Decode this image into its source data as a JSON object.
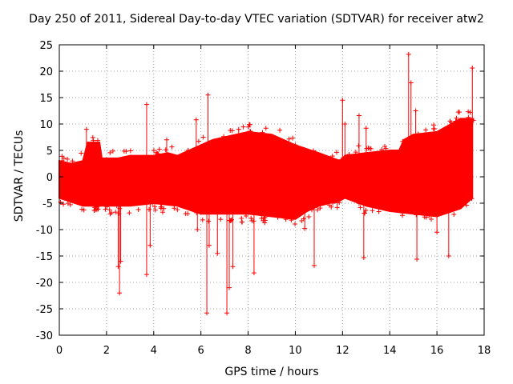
{
  "chart_data": {
    "type": "scatter",
    "title": "Day 250 of 2011, Sidereal Day-to-day VTEC variation (SDTVAR) for receiver atw2",
    "xlabel": "GPS time / hours",
    "ylabel": "SDTVAR / TECUs",
    "xlim": [
      0,
      18
    ],
    "ylim": [
      -30,
      25
    ],
    "xticks": [
      "0",
      "2",
      "4",
      "6",
      "8",
      "10",
      "12",
      "14",
      "16",
      "18"
    ],
    "yticks": [
      "25",
      "20",
      "15",
      "10",
      "5",
      "0",
      "-5",
      "-10",
      "-15",
      "-20",
      "-25",
      "-30"
    ],
    "grid": true,
    "color": "#ff0000",
    "marker": "plus",
    "band_upper": [
      [
        0.0,
        3
      ],
      [
        0.5,
        2.5
      ],
      [
        1.0,
        3
      ],
      [
        1.2,
        6.5
      ],
      [
        1.7,
        6.5
      ],
      [
        1.8,
        3.5
      ],
      [
        2.5,
        3.5
      ],
      [
        3.0,
        4
      ],
      [
        4.0,
        4
      ],
      [
        4.6,
        4.5
      ],
      [
        5.0,
        4
      ],
      [
        5.5,
        5
      ],
      [
        6.0,
        6
      ],
      [
        6.5,
        7
      ],
      [
        7.0,
        7.5
      ],
      [
        8.0,
        8.5
      ],
      [
        9.0,
        8
      ],
      [
        10.0,
        6
      ],
      [
        11.0,
        4.5
      ],
      [
        11.9,
        3
      ],
      [
        12.1,
        4
      ],
      [
        13.0,
        4.5
      ],
      [
        14.0,
        5
      ],
      [
        14.4,
        5
      ],
      [
        14.6,
        7
      ],
      [
        15.0,
        8
      ],
      [
        16.0,
        8.5
      ],
      [
        16.6,
        10
      ],
      [
        17.0,
        11
      ],
      [
        17.5,
        11
      ]
    ],
    "band_lower": [
      [
        0.0,
        -4
      ],
      [
        1.0,
        -5.5
      ],
      [
        2.0,
        -5.5
      ],
      [
        3.0,
        -5.5
      ],
      [
        4.0,
        -5
      ],
      [
        5.0,
        -5.5
      ],
      [
        6.0,
        -7
      ],
      [
        7.0,
        -7
      ],
      [
        8.0,
        -7
      ],
      [
        9.0,
        -7.5
      ],
      [
        10.0,
        -8
      ],
      [
        10.5,
        -6.5
      ],
      [
        11.0,
        -5.5
      ],
      [
        11.9,
        -4.5
      ],
      [
        12.1,
        -4
      ],
      [
        13.0,
        -5.5
      ],
      [
        14.0,
        -6.5
      ],
      [
        15.0,
        -7
      ],
      [
        16.0,
        -7.5
      ],
      [
        17.0,
        -6
      ],
      [
        17.5,
        -4
      ]
    ],
    "outliers": [
      [
        1.15,
        9
      ],
      [
        2.5,
        -17
      ],
      [
        2.55,
        -22
      ],
      [
        2.6,
        -16
      ],
      [
        3.7,
        13.7
      ],
      [
        3.7,
        -18.5
      ],
      [
        3.85,
        -13
      ],
      [
        4.55,
        7
      ],
      [
        5.8,
        10.8
      ],
      [
        5.85,
        -10
      ],
      [
        6.3,
        15.5
      ],
      [
        6.25,
        -25.8
      ],
      [
        6.35,
        -13
      ],
      [
        6.7,
        -14.5
      ],
      [
        7.1,
        -25.8
      ],
      [
        7.2,
        -21
      ],
      [
        7.35,
        -17
      ],
      [
        7.6,
        9
      ],
      [
        8.1,
        8.5
      ],
      [
        8.25,
        -18.2
      ],
      [
        10.4,
        -9.8
      ],
      [
        10.8,
        -16.8
      ],
      [
        12.0,
        14.5
      ],
      [
        12.1,
        10
      ],
      [
        12.7,
        11.6
      ],
      [
        12.9,
        -15.3
      ],
      [
        13.0,
        9.2
      ],
      [
        14.8,
        23.2
      ],
      [
        14.9,
        17.8
      ],
      [
        15.1,
        12.5
      ],
      [
        15.15,
        -15.6
      ],
      [
        16.0,
        -10.5
      ],
      [
        16.5,
        -15
      ],
      [
        17.5,
        20.6
      ],
      [
        17.55,
        10.7
      ]
    ]
  }
}
